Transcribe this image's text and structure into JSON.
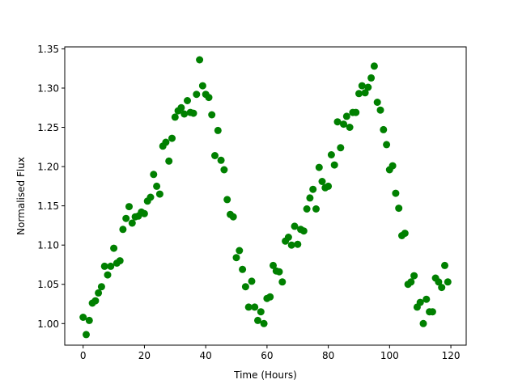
{
  "chart_data": {
    "type": "scatter",
    "xlabel": "Time (Hours)",
    "ylabel": "Normalised Flux",
    "xlim": [
      -6,
      125
    ],
    "ylim": [
      0.9725,
      1.3525
    ],
    "xticks": [
      0,
      20,
      40,
      60,
      80,
      100,
      120
    ],
    "yticks": [
      1.0,
      1.05,
      1.1,
      1.15,
      1.2,
      1.25,
      1.3,
      1.35
    ],
    "ytick_labels": [
      "1.00",
      "1.05",
      "1.10",
      "1.15",
      "1.20",
      "1.25",
      "1.30",
      "1.35"
    ],
    "grid": false,
    "marker_color": "#008000",
    "points": [
      [
        0.0,
        1.008
      ],
      [
        1.0,
        0.986
      ],
      [
        2.0,
        1.004
      ],
      [
        3.0,
        1.026
      ],
      [
        4.0,
        1.029
      ],
      [
        5.0,
        1.039
      ],
      [
        6.0,
        1.047
      ],
      [
        7.0,
        1.073
      ],
      [
        8.0,
        1.062
      ],
      [
        9.0,
        1.073
      ],
      [
        10.0,
        1.096
      ],
      [
        11.0,
        1.077
      ],
      [
        12.0,
        1.08
      ],
      [
        13.0,
        1.12
      ],
      [
        14.0,
        1.134
      ],
      [
        15.0,
        1.149
      ],
      [
        16.0,
        1.128
      ],
      [
        17.0,
        1.136
      ],
      [
        18.0,
        1.137
      ],
      [
        19.0,
        1.142
      ],
      [
        20.0,
        1.14
      ],
      [
        21.0,
        1.156
      ],
      [
        22.0,
        1.161
      ],
      [
        23.0,
        1.19
      ],
      [
        24.0,
        1.175
      ],
      [
        25.0,
        1.165
      ],
      [
        26.0,
        1.226
      ],
      [
        27.0,
        1.231
      ],
      [
        28.0,
        1.207
      ],
      [
        29.0,
        1.236
      ],
      [
        30.0,
        1.263
      ],
      [
        31.0,
        1.271
      ],
      [
        32.0,
        1.275
      ],
      [
        33.0,
        1.267
      ],
      [
        34.0,
        1.284
      ],
      [
        35.0,
        1.269
      ],
      [
        36.0,
        1.268
      ],
      [
        37.0,
        1.292
      ],
      [
        38.0,
        1.336
      ],
      [
        39.0,
        1.303
      ],
      [
        40.0,
        1.292
      ],
      [
        41.0,
        1.288
      ],
      [
        42.0,
        1.266
      ],
      [
        43.0,
        1.214
      ],
      [
        44.0,
        1.246
      ],
      [
        45.0,
        1.208
      ],
      [
        46.0,
        1.196
      ],
      [
        47.0,
        1.158
      ],
      [
        48.0,
        1.139
      ],
      [
        49.0,
        1.136
      ],
      [
        50.0,
        1.084
      ],
      [
        51.0,
        1.093
      ],
      [
        52.0,
        1.069
      ],
      [
        53.0,
        1.047
      ],
      [
        54.0,
        1.021
      ],
      [
        55.0,
        1.054
      ],
      [
        56.0,
        1.021
      ],
      [
        57.0,
        1.004
      ],
      [
        58.0,
        1.015
      ],
      [
        59.0,
        1.0
      ],
      [
        60.0,
        1.032
      ],
      [
        61.0,
        1.034
      ],
      [
        62.0,
        1.074
      ],
      [
        63.0,
        1.067
      ],
      [
        64.0,
        1.066
      ],
      [
        65.0,
        1.053
      ],
      [
        66.0,
        1.105
      ],
      [
        67.0,
        1.11
      ],
      [
        68.0,
        1.1
      ],
      [
        69.0,
        1.124
      ],
      [
        70.0,
        1.101
      ],
      [
        71.0,
        1.12
      ],
      [
        72.0,
        1.118
      ],
      [
        73.0,
        1.146
      ],
      [
        74.0,
        1.16
      ],
      [
        75.0,
        1.171
      ],
      [
        76.0,
        1.146
      ],
      [
        77.0,
        1.199
      ],
      [
        78.0,
        1.181
      ],
      [
        79.0,
        1.173
      ],
      [
        80.0,
        1.175
      ],
      [
        81.0,
        1.215
      ],
      [
        82.0,
        1.202
      ],
      [
        83.0,
        1.257
      ],
      [
        84.0,
        1.224
      ],
      [
        85.0,
        1.254
      ],
      [
        86.0,
        1.264
      ],
      [
        87.0,
        1.25
      ],
      [
        88.0,
        1.269
      ],
      [
        89.0,
        1.269
      ],
      [
        90.0,
        1.293
      ],
      [
        91.0,
        1.303
      ],
      [
        92.0,
        1.294
      ],
      [
        93.0,
        1.301
      ],
      [
        94.0,
        1.313
      ],
      [
        95.0,
        1.328
      ],
      [
        96.0,
        1.282
      ],
      [
        97.0,
        1.272
      ],
      [
        98.0,
        1.247
      ],
      [
        99.0,
        1.228
      ],
      [
        100.0,
        1.196
      ],
      [
        101.0,
        1.201
      ],
      [
        102.0,
        1.166
      ],
      [
        103.0,
        1.147
      ],
      [
        104.0,
        1.112
      ],
      [
        105.0,
        1.115
      ],
      [
        106.0,
        1.05
      ],
      [
        107.0,
        1.053
      ],
      [
        108.0,
        1.061
      ],
      [
        109.0,
        1.021
      ],
      [
        110.0,
        1.027
      ],
      [
        111.0,
        1.0
      ],
      [
        112.0,
        1.031
      ],
      [
        113.0,
        1.015
      ],
      [
        114.0,
        1.015
      ],
      [
        115.0,
        1.058
      ],
      [
        116.0,
        1.053
      ],
      [
        117.0,
        1.046
      ],
      [
        118.0,
        1.074
      ],
      [
        119.0,
        1.053
      ]
    ]
  }
}
